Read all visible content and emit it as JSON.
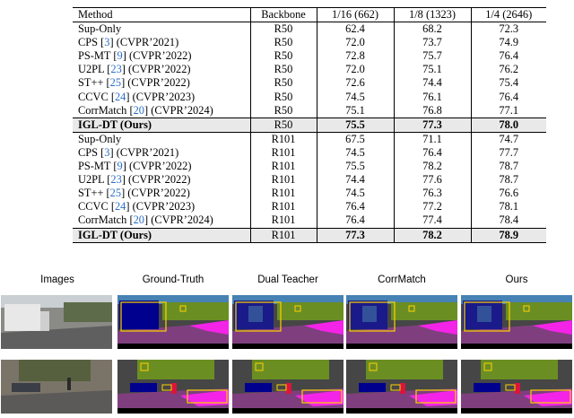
{
  "table": {
    "headers": [
      "Method",
      "Backbone",
      "1/16 (662)",
      "1/8 (1323)",
      "1/4 (2646)"
    ],
    "r50_rows": [
      {
        "method": "Sup-Only",
        "ref": "",
        "venue": "",
        "backbone": "R50",
        "v1": "62.4",
        "v2": "68.2",
        "v3": "72.3"
      },
      {
        "method": "CPS",
        "ref": "3",
        "venue": "(CVPR’2021)",
        "backbone": "R50",
        "v1": "72.0",
        "v2": "73.7",
        "v3": "74.9"
      },
      {
        "method": "PS-MT",
        "ref": "9",
        "venue": "(CVPR’2022)",
        "backbone": "R50",
        "v1": "72.8",
        "v2": "75.7",
        "v3": "76.4"
      },
      {
        "method": "U2PL",
        "ref": "23",
        "venue": "(CVPR’2022)",
        "backbone": "R50",
        "v1": "72.0",
        "v2": "75.1",
        "v3": "76.2"
      },
      {
        "method": "ST++",
        "ref": "25",
        "venue": "(CVPR’2022)",
        "backbone": "R50",
        "v1": "72.6",
        "v2": "74.4",
        "v3": "75.4"
      },
      {
        "method": "CCVC",
        "ref": "24",
        "venue": "(CVPR’2023)",
        "backbone": "R50",
        "v1": "74.5",
        "v2": "76.1",
        "v3": "76.4"
      },
      {
        "method": "CorrMatch",
        "ref": "20",
        "venue": "(CVPR’2024)",
        "backbone": "R50",
        "v1": "75.1",
        "v2": "76.8",
        "v3": "77.1"
      }
    ],
    "r50_ours": {
      "method": "IGL-DT (Ours)",
      "backbone": "R50",
      "v1": "75.5",
      "v2": "77.3",
      "v3": "78.0"
    },
    "r101_rows": [
      {
        "method": "Sup-Only",
        "ref": "",
        "venue": "",
        "backbone": "R101",
        "v1": "67.5",
        "v2": "71.1",
        "v3": "74.7"
      },
      {
        "method": "CPS",
        "ref": "3",
        "venue": "(CVPR’2021)",
        "backbone": "R101",
        "v1": "74.5",
        "v2": "76.4",
        "v3": "77.7"
      },
      {
        "method": "PS-MT",
        "ref": "9",
        "venue": "(CVPR’2022)",
        "backbone": "R101",
        "v1": "75.5",
        "v2": "78.2",
        "v3": "78.7"
      },
      {
        "method": "U2PL",
        "ref": "23",
        "venue": "(CVPR’2022)",
        "backbone": "R101",
        "v1": "74.4",
        "v2": "77.6",
        "v3": "78.7"
      },
      {
        "method": "ST++",
        "ref": "25",
        "venue": "(CVPR’2022)",
        "backbone": "R101",
        "v1": "74.5",
        "v2": "76.3",
        "v3": "76.6"
      },
      {
        "method": "CCVC",
        "ref": "24",
        "venue": "(CVPR’2023)",
        "backbone": "R101",
        "v1": "76.4",
        "v2": "77.2",
        "v3": "78.1"
      },
      {
        "method": "CorrMatch",
        "ref": "20",
        "venue": "(CVPR’2024)",
        "backbone": "R101",
        "v1": "76.4",
        "v2": "77.4",
        "v3": "78.4"
      }
    ],
    "r101_ours": {
      "method": "IGL-DT (Ours)",
      "backbone": "R101",
      "v1": "77.3",
      "v2": "78.2",
      "v3": "78.9"
    }
  },
  "figure": {
    "columns": [
      "Images",
      "Ground-Truth",
      "Dual Teacher",
      "CorrMatch",
      "Ours"
    ]
  },
  "colors": {
    "road": "#7f3f7f",
    "sidewalk": "#f423e8",
    "building": "#464646",
    "vegetation": "#6b8e23",
    "car": "#00008e",
    "sky": "#4682b4",
    "sign": "#dcdc00",
    "ref_link": "#2a6fc7",
    "highlight_box": "#ffd200"
  }
}
